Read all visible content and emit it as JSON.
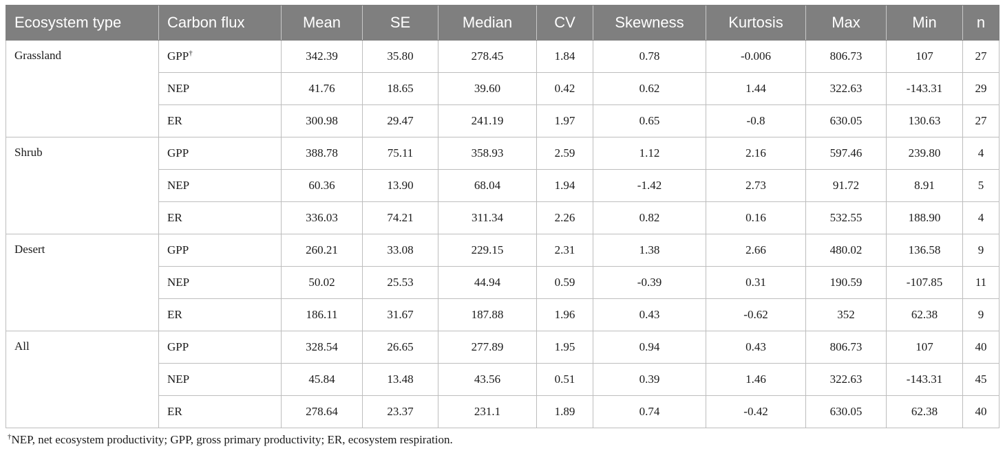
{
  "table": {
    "headers": [
      "Ecosystem type",
      "Carbon flux",
      "Mean",
      "SE",
      "Median",
      "CV",
      "Skewness",
      "Kurtosis",
      "Max",
      "Min",
      "n"
    ],
    "groups": [
      {
        "ecosystem": "Grassland",
        "rows": [
          {
            "flux": "GPP",
            "sup": "†",
            "values": [
              "342.39",
              "35.80",
              "278.45",
              "1.84",
              "0.78",
              "-0.006",
              "806.73",
              "107",
              "27"
            ]
          },
          {
            "flux": "NEP",
            "sup": "",
            "values": [
              "41.76",
              "18.65",
              "39.60",
              "0.42",
              "0.62",
              "1.44",
              "322.63",
              "-143.31",
              "29"
            ]
          },
          {
            "flux": "ER",
            "sup": "",
            "values": [
              "300.98",
              "29.47",
              "241.19",
              "1.97",
              "0.65",
              "-0.8",
              "630.05",
              "130.63",
              "27"
            ]
          }
        ]
      },
      {
        "ecosystem": "Shrub",
        "rows": [
          {
            "flux": "GPP",
            "sup": "",
            "values": [
              "388.78",
              "75.11",
              "358.93",
              "2.59",
              "1.12",
              "2.16",
              "597.46",
              "239.80",
              "4"
            ]
          },
          {
            "flux": "NEP",
            "sup": "",
            "values": [
              "60.36",
              "13.90",
              "68.04",
              "1.94",
              "-1.42",
              "2.73",
              "91.72",
              "8.91",
              "5"
            ]
          },
          {
            "flux": "ER",
            "sup": "",
            "values": [
              "336.03",
              "74.21",
              "311.34",
              "2.26",
              "0.82",
              "0.16",
              "532.55",
              "188.90",
              "4"
            ]
          }
        ]
      },
      {
        "ecosystem": "Desert",
        "rows": [
          {
            "flux": "GPP",
            "sup": "",
            "values": [
              "260.21",
              "33.08",
              "229.15",
              "2.31",
              "1.38",
              "2.66",
              "480.02",
              "136.58",
              "9"
            ]
          },
          {
            "flux": "NEP",
            "sup": "",
            "values": [
              "50.02",
              "25.53",
              "44.94",
              "0.59",
              "-0.39",
              "0.31",
              "190.59",
              "-107.85",
              "11"
            ]
          },
          {
            "flux": "ER",
            "sup": "",
            "values": [
              "186.11",
              "31.67",
              "187.88",
              "1.96",
              "0.43",
              "-0.62",
              "352",
              "62.38",
              "9"
            ]
          }
        ]
      },
      {
        "ecosystem": "All",
        "rows": [
          {
            "flux": "GPP",
            "sup": "",
            "values": [
              "328.54",
              "26.65",
              "277.89",
              "1.95",
              "0.94",
              "0.43",
              "806.73",
              "107",
              "40"
            ]
          },
          {
            "flux": "NEP",
            "sup": "",
            "values": [
              "45.84",
              "13.48",
              "43.56",
              "0.51",
              "0.39",
              "1.46",
              "322.63",
              "-143.31",
              "45"
            ]
          },
          {
            "flux": "ER",
            "sup": "",
            "values": [
              "278.64",
              "23.37",
              "231.1",
              "1.89",
              "0.74",
              "-0.42",
              "630.05",
              "62.38",
              "40"
            ]
          }
        ]
      }
    ]
  },
  "footnote": {
    "marker": "†",
    "text": "NEP, net ecosystem productivity; GPP, gross primary productivity; ER, ecosystem respiration."
  },
  "colors": {
    "header_bg": "#7f7f7f",
    "header_text": "#ffffff",
    "grid": "#bdbdbd"
  }
}
